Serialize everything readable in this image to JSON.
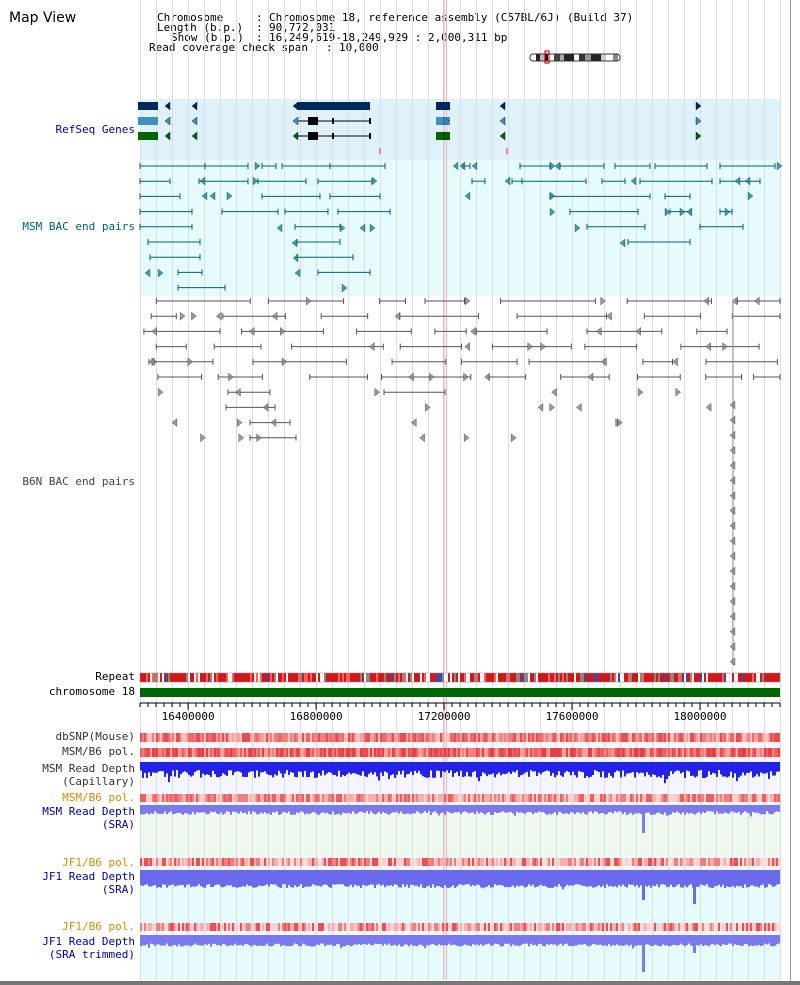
{
  "app": {
    "title": "Map View"
  },
  "info": {
    "chromosome_key": "Chromosome",
    "chromosome_val": "Chromosome 18, reference assembly (C57BL/6J) (Build 37)",
    "length_key": "Length (b.p.)",
    "length_val": "90,772,031",
    "show_key": "Show (b.p.)",
    "show_val": "16,249,619-18,249,929 : 2,000,311 bp",
    "coverage_key": "Read coverage check span",
    "coverage_val": "10,000"
  },
  "view": {
    "start": 16249619,
    "end": 18249929,
    "cursor_pos": 17200000,
    "highlight_pos": 17208000
  },
  "tracks": {
    "refseq": "RefSeq Genes",
    "msm_bac": "MSM BAC end pairs",
    "b6n_bac": "B6N BAC end pairs",
    "repeat": "Repeat",
    "chromosome": "chromosome 18",
    "dbsnp": "dbSNP(Mouse)",
    "msm_b6_pol_1": "MSM/B6 pol.",
    "msm_depth_cap_1": "MSM Read Depth",
    "msm_depth_cap_2": "(Capillary)",
    "msm_b6_pol_2": "MSM/B6 pol.",
    "msm_depth_sra_1": "MSM Read Depth",
    "msm_depth_sra_2": "(SRA)",
    "jf1_b6_pol_1": "JF1/B6 pol.",
    "jf1_depth_sra_1": "JF1 Read Depth",
    "jf1_depth_sra_2": "(SRA)",
    "jf1_b6_pol_2": "JF1/B6 pol.",
    "jf1_depth_trim_1": "JF1 Read Depth",
    "jf1_depth_trim_2": "(SRA trimmed)"
  },
  "axis": {
    "ticks": [
      "16400000",
      "16800000",
      "17200000",
      "17600000",
      "18000000"
    ],
    "tick_values": [
      16400000,
      16800000,
      17200000,
      17600000,
      18000000
    ]
  },
  "colors": {
    "refseq_bg": "#dff1fa",
    "msm_bg": "#e6fbfb",
    "gene_dark": "#00285a",
    "gene_mid": "#3f8fbf",
    "gene_green": "#006600",
    "bac_msm": "#00607a",
    "bac_b6n": "#555555",
    "chromosome": "#006600",
    "snp_red": "#e03030",
    "depth_blue": "#2020e0",
    "depth_light": "#7777ee",
    "grid": "#dddddd"
  }
}
